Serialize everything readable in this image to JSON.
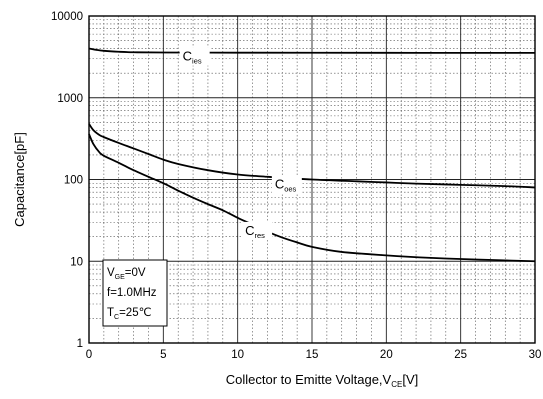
{
  "chart_data": {
    "type": "line",
    "xlabel": {
      "main": "Collector to Emitte Voltage,V",
      "sub": "CE",
      "unit": "[V]"
    },
    "ylabel": "Capacitance[pF]",
    "xlim": [
      0,
      30
    ],
    "ylim": [
      1,
      10000
    ],
    "yscale": "log",
    "x_ticks": [
      0,
      5,
      10,
      15,
      20,
      25,
      30
    ],
    "x_tick_labels": [
      "0",
      "5",
      "10",
      "15",
      "20",
      "25",
      "30"
    ],
    "y_ticks": [
      1,
      10,
      100,
      1000,
      10000
    ],
    "y_tick_labels": [
      "1",
      "10",
      "100",
      "1000",
      "10000"
    ],
    "grid": true,
    "series": [
      {
        "name": {
          "main": "C",
          "sub": "ies"
        },
        "color": "#000000",
        "points": [
          [
            0,
            4000
          ],
          [
            0.5,
            3850
          ],
          [
            1,
            3750
          ],
          [
            2,
            3650
          ],
          [
            3,
            3600
          ],
          [
            5,
            3580
          ],
          [
            10,
            3560
          ],
          [
            15,
            3550
          ],
          [
            20,
            3545
          ],
          [
            25,
            3540
          ],
          [
            30,
            3540
          ]
        ],
        "label_at": [
          6.3,
          2850
        ]
      },
      {
        "name": {
          "main": "C",
          "sub": "oes"
        },
        "color": "#000000",
        "points": [
          [
            0,
            480
          ],
          [
            0.3,
            400
          ],
          [
            0.7,
            350
          ],
          [
            1,
            330
          ],
          [
            2,
            280
          ],
          [
            3,
            240
          ],
          [
            4,
            205
          ],
          [
            5,
            175
          ],
          [
            6,
            155
          ],
          [
            8,
            130
          ],
          [
            10,
            115
          ],
          [
            12,
            108
          ],
          [
            15,
            100
          ],
          [
            18,
            95
          ],
          [
            20,
            92
          ],
          [
            22,
            89
          ],
          [
            25,
            86
          ],
          [
            28,
            83
          ],
          [
            30,
            80
          ]
        ],
        "label_at": [
          12.5,
          78
        ]
      },
      {
        "name": {
          "main": "C",
          "sub": "res"
        },
        "color": "#000000",
        "points": [
          [
            0,
            360
          ],
          [
            0.3,
            270
          ],
          [
            0.7,
            215
          ],
          [
            1,
            195
          ],
          [
            2,
            160
          ],
          [
            3,
            130
          ],
          [
            4,
            108
          ],
          [
            5,
            90
          ],
          [
            6,
            73
          ],
          [
            7,
            60
          ],
          [
            8,
            50
          ],
          [
            9,
            42
          ],
          [
            10,
            34
          ],
          [
            11,
            28
          ],
          [
            12,
            23
          ],
          [
            13,
            19.5
          ],
          [
            14,
            17
          ],
          [
            15,
            15
          ],
          [
            17,
            13
          ],
          [
            20,
            11.8
          ],
          [
            23,
            11
          ],
          [
            26,
            10.5
          ],
          [
            30,
            10
          ]
        ],
        "label_at": [
          10.5,
          21
        ]
      }
    ],
    "conditions": [
      {
        "main": "V",
        "sub": "GE",
        "rest": "=0V"
      },
      {
        "main": "f=1.0MHz",
        "sub": "",
        "rest": ""
      },
      {
        "main": "T",
        "sub": "C",
        "rest": "=25℃"
      }
    ]
  }
}
